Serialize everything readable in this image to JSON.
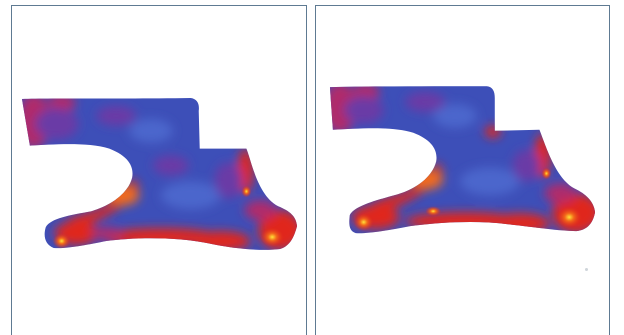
{
  "panels": [
    {
      "id": "left",
      "variant": "a"
    },
    {
      "id": "right",
      "variant": "b"
    }
  ],
  "colors": {
    "border": "#5e7a92",
    "base_blue": "#3d4fb8",
    "light_blue": "#4b66cc",
    "purple": "#6a3aa6",
    "magenta": "#b02a6a",
    "red": "#e0281c",
    "orange": "#f26a1a",
    "yellow": "#ffe23a"
  }
}
